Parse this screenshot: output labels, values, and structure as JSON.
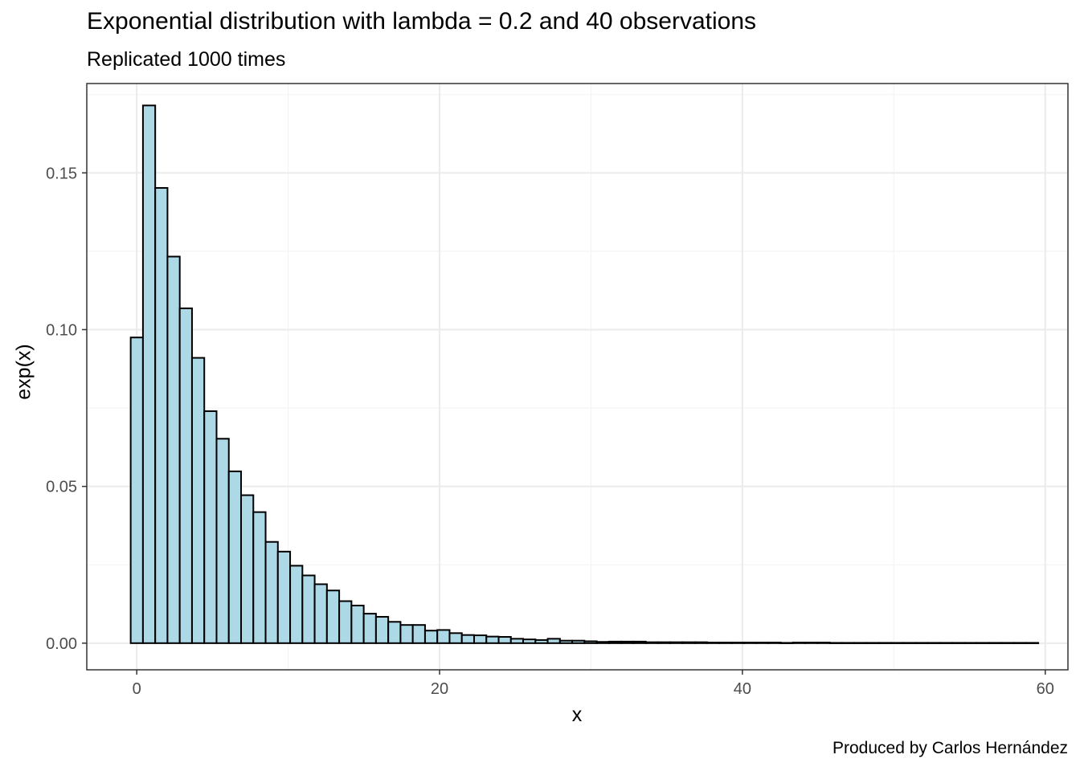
{
  "chart_data": {
    "type": "bar",
    "title": "Exponential distribution with lambda = 0.2 and 40 observations",
    "subtitle": "Replicated 1000 times",
    "caption": "Produced by Carlos Hernández",
    "xlabel": "x",
    "ylabel": "exp(x)",
    "xlim": [
      -3.3,
      61.5
    ],
    "ylim": [
      -0.0085,
      0.1785
    ],
    "x_ticks": [
      0,
      20,
      40,
      60
    ],
    "x_tick_labels": [
      "0",
      "20",
      "40",
      "60"
    ],
    "y_ticks": [
      0.0,
      0.05,
      0.1,
      0.15
    ],
    "y_tick_labels": [
      "0.00",
      "0.05",
      "0.10",
      "0.15"
    ],
    "bin_width": 0.81,
    "x_start": -0.4,
    "values": [
      0.0975,
      0.1715,
      0.1452,
      0.1233,
      0.1068,
      0.091,
      0.074,
      0.0652,
      0.0548,
      0.0472,
      0.0418,
      0.0323,
      0.0292,
      0.0247,
      0.0216,
      0.0188,
      0.0168,
      0.0134,
      0.012,
      0.0094,
      0.0084,
      0.0068,
      0.0058,
      0.0058,
      0.004,
      0.0042,
      0.0032,
      0.0026,
      0.0025,
      0.0021,
      0.002,
      0.0014,
      0.0012,
      0.001,
      0.0014,
      0.0008,
      0.0008,
      0.0006,
      0.0004,
      0.0005,
      0.0005,
      0.0005,
      0.0003,
      0.0003,
      0.0003,
      0.0003,
      0.0003,
      0.0002,
      0.0002,
      0.0002,
      0.0002,
      0.0002,
      0.0002,
      0.0001,
      0.0002,
      0.0002,
      0.0002,
      0.0001,
      0.0001,
      0.0001,
      0.0001,
      0.0001,
      0.0001,
      0.0001,
      0.0001,
      0.0001,
      0.0001,
      0.0001,
      0.0001,
      0.0001,
      0.0001,
      0.0001,
      0.0001,
      0.0001
    ],
    "grid": true,
    "colors": {
      "bar_fill": "#add8e6",
      "bar_stroke": "#000000",
      "grid_major": "#ebebeb",
      "grid_minor": "#f4f4f4",
      "panel_border": "#333333",
      "tick_label": "#4d4d4d"
    }
  }
}
